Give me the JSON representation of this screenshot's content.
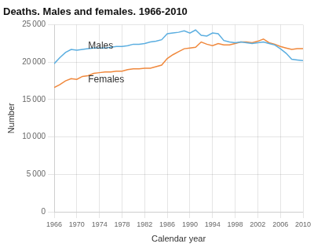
{
  "chart_data": {
    "type": "line",
    "title": "Deaths. Males and females. 1966-2010",
    "xlabel": "Calendar year",
    "ylabel": "Number",
    "x": [
      1966,
      1967,
      1968,
      1969,
      1970,
      1971,
      1972,
      1973,
      1974,
      1975,
      1976,
      1977,
      1978,
      1979,
      1980,
      1981,
      1982,
      1983,
      1984,
      1985,
      1986,
      1987,
      1988,
      1989,
      1990,
      1991,
      1992,
      1993,
      1994,
      1995,
      1996,
      1997,
      1998,
      1999,
      2000,
      2001,
      2002,
      2003,
      2004,
      2005,
      2006,
      2007,
      2008,
      2009,
      2010
    ],
    "series": [
      {
        "name": "Males",
        "color": "#5baee0",
        "values": [
          19800,
          20600,
          21300,
          21700,
          21600,
          21700,
          21800,
          21900,
          21900,
          21900,
          22000,
          22100,
          22100,
          22200,
          22400,
          22400,
          22500,
          22700,
          22800,
          23000,
          23800,
          23900,
          24000,
          24200,
          23900,
          24300,
          23600,
          23500,
          23900,
          23800,
          22900,
          22700,
          22600,
          22700,
          22600,
          22500,
          22600,
          22700,
          22500,
          22300,
          21800,
          21200,
          20400,
          20300,
          20200
        ]
      },
      {
        "name": "Females",
        "color": "#f0883c",
        "values": [
          16600,
          17000,
          17500,
          17800,
          17700,
          18100,
          18200,
          18500,
          18600,
          18700,
          18700,
          18800,
          18800,
          19000,
          19100,
          19100,
          19200,
          19200,
          19400,
          19600,
          20500,
          21000,
          21400,
          21800,
          21900,
          22000,
          22700,
          22400,
          22200,
          22500,
          22300,
          22300,
          22500,
          22700,
          22700,
          22600,
          22800,
          23100,
          22600,
          22400,
          22100,
          21900,
          21700,
          21800,
          21800
        ]
      }
    ],
    "xlim": [
      1966,
      2010
    ],
    "xticks": [
      1966,
      1970,
      1974,
      1978,
      1982,
      1986,
      1990,
      1994,
      1998,
      2002,
      2006,
      2010
    ],
    "ylim": [
      0,
      25000
    ],
    "yticks": [
      0,
      {
        "value": 5000,
        "label": "5 000"
      },
      {
        "value": 10000,
        "label": "10 000"
      },
      {
        "value": 15000,
        "label": "15 000"
      },
      {
        "value": 20000,
        "label": "20 000"
      },
      {
        "value": 25000,
        "label": "25 000"
      }
    ],
    "grid": true,
    "annotations": [
      {
        "text": "Males",
        "x": 1972,
        "y": 21800
      },
      {
        "text": "Females",
        "x": 1972,
        "y": 17300
      }
    ]
  }
}
